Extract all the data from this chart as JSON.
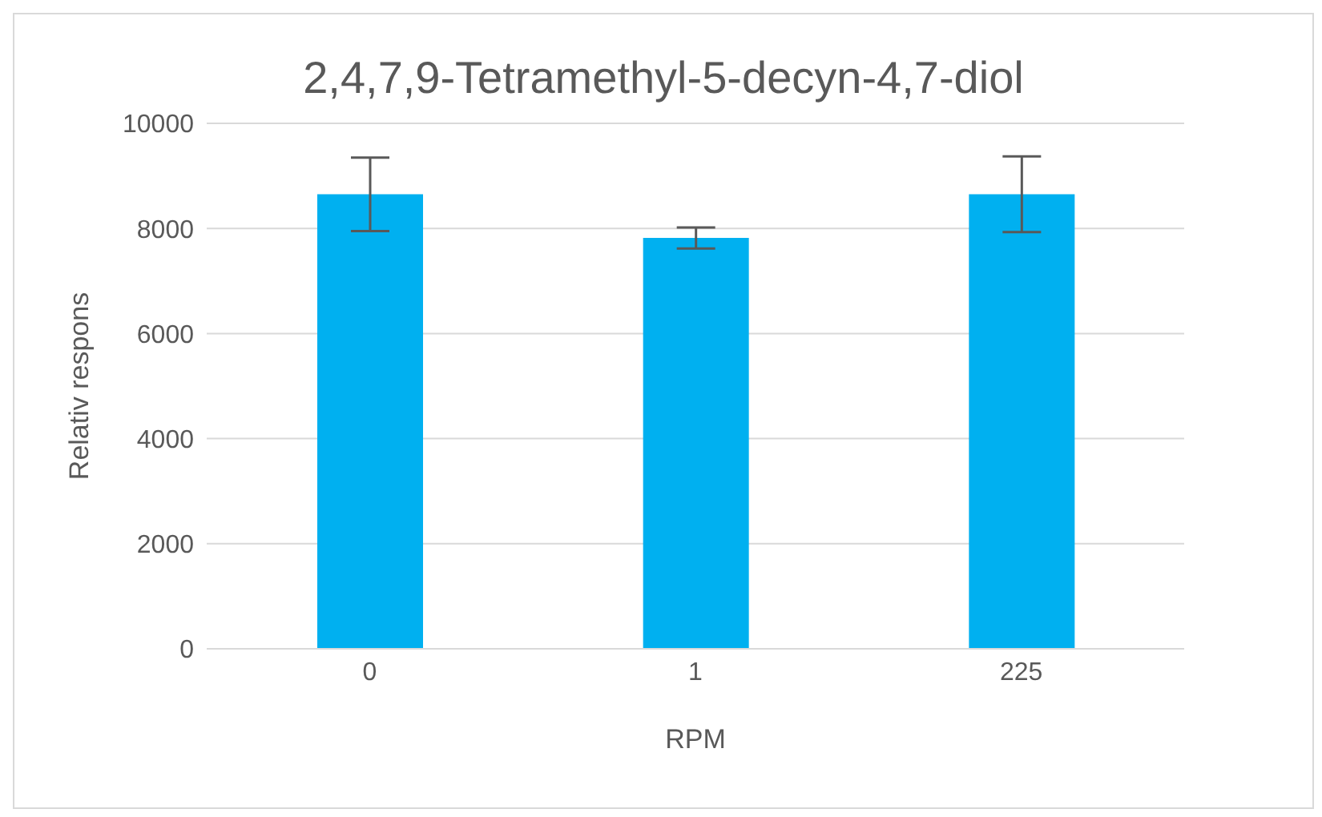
{
  "chart_data": {
    "type": "bar",
    "title": "2,4,7,9-Tetramethyl-5-decyn-4,7-diol",
    "xlabel": "RPM",
    "ylabel": "Relativ respons",
    "categories": [
      "0",
      "1",
      "225"
    ],
    "values": [
      8650,
      7820,
      8650
    ],
    "errors": [
      700,
      200,
      720
    ],
    "color": "#00b0f0",
    "ylim": [
      0,
      10000
    ],
    "yticks": [
      0,
      2000,
      4000,
      6000,
      8000,
      10000
    ],
    "grid": "y"
  }
}
